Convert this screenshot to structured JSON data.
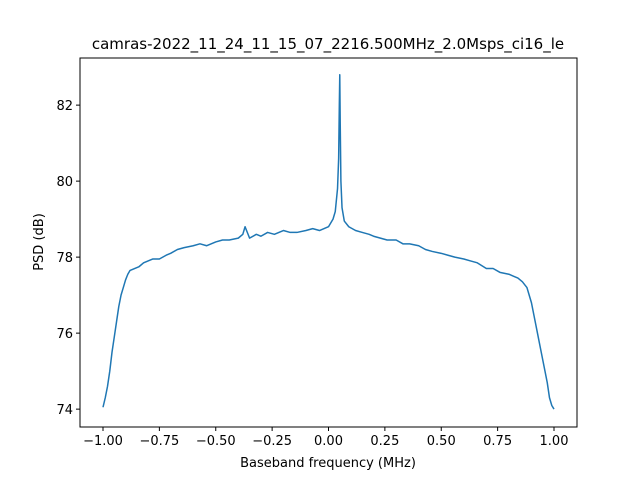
{
  "chart_data": {
    "type": "line",
    "title": "camras-2022_11_24_11_15_07_2216.500MHz_2.0Msps_ci16_le",
    "x_label": "Baseband frequency (MHz)",
    "y_label": "PSD (dB)",
    "x": [
      -1.0,
      -0.99,
      -0.98,
      -0.97,
      -0.96,
      -0.95,
      -0.94,
      -0.93,
      -0.92,
      -0.91,
      -0.9,
      -0.89,
      -0.88,
      -0.86,
      -0.84,
      -0.82,
      -0.8,
      -0.78,
      -0.75,
      -0.72,
      -0.7,
      -0.67,
      -0.64,
      -0.6,
      -0.57,
      -0.54,
      -0.5,
      -0.47,
      -0.44,
      -0.4,
      -0.38,
      -0.37,
      -0.35,
      -0.32,
      -0.3,
      -0.27,
      -0.24,
      -0.2,
      -0.17,
      -0.14,
      -0.1,
      -0.07,
      -0.04,
      0.0,
      0.02,
      0.03,
      0.04,
      0.045,
      0.048,
      0.05,
      0.052,
      0.055,
      0.06,
      0.07,
      0.09,
      0.12,
      0.15,
      0.18,
      0.2,
      0.23,
      0.26,
      0.3,
      0.33,
      0.36,
      0.4,
      0.43,
      0.46,
      0.5,
      0.53,
      0.56,
      0.6,
      0.63,
      0.66,
      0.7,
      0.73,
      0.76,
      0.8,
      0.82,
      0.84,
      0.86,
      0.88,
      0.89,
      0.9,
      0.91,
      0.92,
      0.93,
      0.94,
      0.95,
      0.96,
      0.97,
      0.98,
      0.99,
      1.0
    ],
    "series": [
      {
        "name": "PSD",
        "color": "#1f77b4",
        "values": [
          74.05,
          74.3,
          74.6,
          75.0,
          75.5,
          75.9,
          76.3,
          76.7,
          77.0,
          77.2,
          77.4,
          77.55,
          77.65,
          77.7,
          77.75,
          77.85,
          77.9,
          77.95,
          77.95,
          78.05,
          78.1,
          78.2,
          78.25,
          78.3,
          78.35,
          78.3,
          78.4,
          78.45,
          78.45,
          78.5,
          78.6,
          78.8,
          78.5,
          78.6,
          78.55,
          78.65,
          78.6,
          78.7,
          78.65,
          78.65,
          78.7,
          78.75,
          78.7,
          78.8,
          79.0,
          79.2,
          79.8,
          80.6,
          82.0,
          82.8,
          81.5,
          80.0,
          79.3,
          78.95,
          78.8,
          78.7,
          78.65,
          78.6,
          78.55,
          78.5,
          78.45,
          78.45,
          78.35,
          78.35,
          78.3,
          78.2,
          78.15,
          78.1,
          78.05,
          78.0,
          77.95,
          77.9,
          77.85,
          77.7,
          77.7,
          77.6,
          77.55,
          77.5,
          77.45,
          77.35,
          77.2,
          77.0,
          76.8,
          76.5,
          76.2,
          75.9,
          75.6,
          75.3,
          75.0,
          74.7,
          74.3,
          74.1,
          74.0
        ]
      }
    ],
    "xlim": [
      -1.102,
      1.102
    ],
    "ylim": [
      73.53,
      83.24
    ],
    "xticks": [
      {
        "value": -1.0,
        "label": "−1.00"
      },
      {
        "value": -0.75,
        "label": "−0.75"
      },
      {
        "value": -0.5,
        "label": "−0.50"
      },
      {
        "value": -0.25,
        "label": "−0.25"
      },
      {
        "value": 0,
        "label": "0.00"
      },
      {
        "value": 0.25,
        "label": "0.25"
      },
      {
        "value": 0.5,
        "label": "0.50"
      },
      {
        "value": 0.75,
        "label": "0.75"
      },
      {
        "value": 1,
        "label": "1.00"
      }
    ],
    "yticks": [
      74,
      76,
      78,
      80,
      82
    ]
  }
}
